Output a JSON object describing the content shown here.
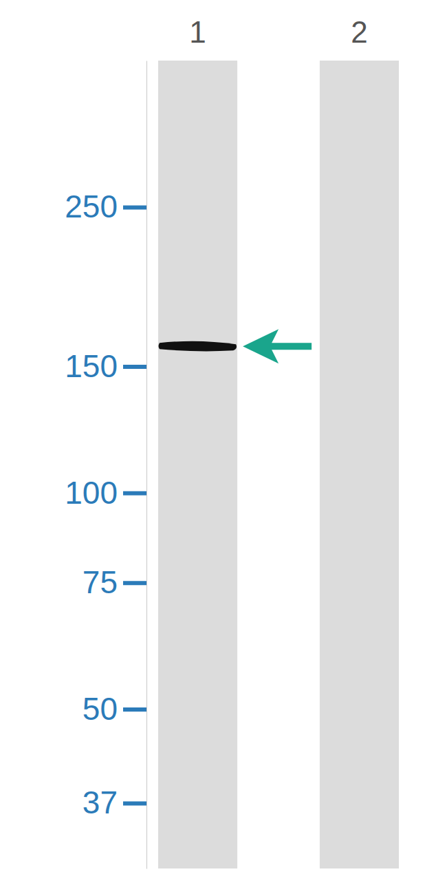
{
  "chart_data": {
    "type": "blot",
    "categories": [
      "1",
      "2"
    ],
    "values": [
      160,
      null
    ],
    "log": "y",
    "ylim": [
      400,
      30
    ],
    "yticks": [
      37,
      50,
      75,
      100,
      150,
      250
    ],
    "color": "#111111"
  }
}
